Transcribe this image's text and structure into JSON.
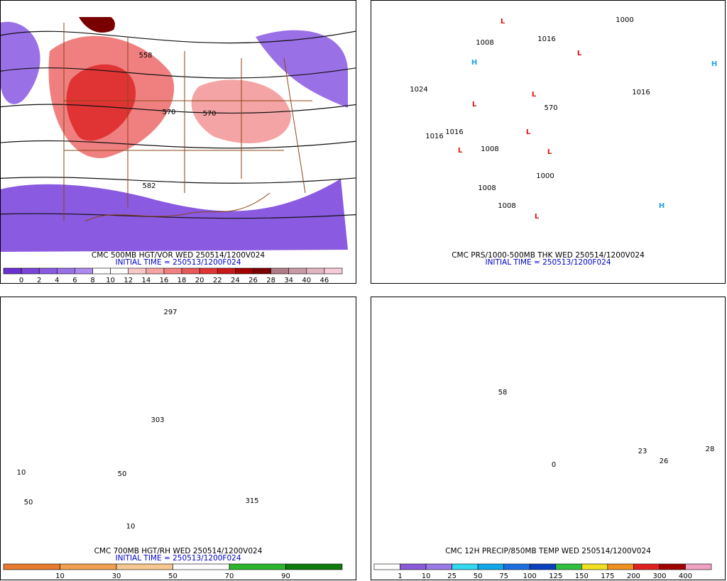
{
  "panels": [
    {
      "title": "CMC 500MB HGT/VOR WED 250514/1200V024",
      "initial_time": "INITIAL TIME = 250513/1200F024",
      "map_labels": [
        "558",
        "570",
        "570",
        "582"
      ],
      "colorbar": {
        "labels": [
          0,
          2,
          4,
          6,
          8,
          10,
          12,
          14,
          16,
          18,
          20,
          22,
          24,
          26,
          28,
          34,
          40,
          46
        ],
        "colors": [
          "#6a2fd0",
          "#7a45d8",
          "#8a5ae0",
          "#9a70e6",
          "#ad8aee",
          "#ffffff",
          "#ffffff",
          "#f8c8c8",
          "#f4a4a4",
          "#f08080",
          "#e85a5a",
          "#e03434",
          "#c81818",
          "#a00000",
          "#7a0000",
          "#b07a86",
          "#c99aa6",
          "#e0b4c0",
          "#f6cad6"
        ]
      }
    },
    {
      "title": "CMC PRS/1000-500MB THK WED 250514/1200V024",
      "initial_time": "INITIAL TIME = 250513/1200F024",
      "map_labels": [
        "1024",
        "1016",
        "1016",
        "1008",
        "1016",
        "1000",
        "1016",
        "570",
        "1008",
        "1000",
        "1008",
        "1008",
        "L",
        "L",
        "L",
        "L",
        "L",
        "L",
        "L",
        "L",
        "H",
        "H",
        "H"
      ]
    },
    {
      "title": "CMC 700MB HGT/RH WED 250514/1200V024",
      "initial_time": "INITIAL TIME = 250513/1200F024",
      "map_labels": [
        "297",
        "303",
        "315",
        "10",
        "50",
        "10",
        "50"
      ],
      "colorbar": {
        "labels": [
          10,
          30,
          50,
          70,
          90
        ],
        "colors": [
          "#e87a30",
          "#f0a050",
          "#f6c890",
          "#ffffff",
          "#2cb52c",
          "#0e7a0e"
        ]
      }
    },
    {
      "title": "CMC 12H PRECIP/850MB TEMP WED 250514/1200V024",
      "map_labels": [
        "0",
        "58",
        "28",
        "26",
        "23"
      ],
      "colorbar": {
        "labels": [
          1,
          10,
          25,
          50,
          75,
          100,
          125,
          150,
          175,
          200,
          300,
          400
        ],
        "colors": [
          "#ffffff",
          "#8a5ad8",
          "#9a7ae6",
          "#30d8f0",
          "#10a8e8",
          "#1a70e0",
          "#0a40c0",
          "#30c040",
          "#f0e020",
          "#f09020",
          "#e02020",
          "#a00000",
          "#f0a0c0"
        ]
      }
    }
  ]
}
